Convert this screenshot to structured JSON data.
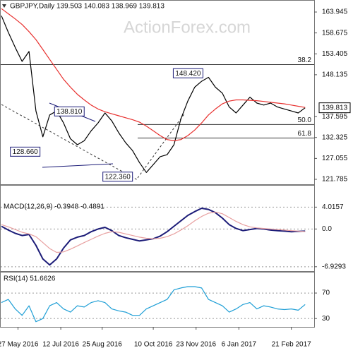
{
  "chart_data": [
    {
      "type": "line",
      "title": "GBPJPY,Daily  139.503 140.083 138.969 139.813",
      "watermark": "ActionForex.com",
      "xlim": [
        0,
        225
      ],
      "x": [
        0,
        5,
        10,
        15,
        20,
        25,
        30,
        35,
        40,
        45,
        50,
        55,
        60,
        65,
        70,
        75,
        80,
        85,
        90,
        95,
        100,
        105,
        110,
        115,
        120,
        125,
        130,
        135,
        140,
        145,
        150,
        155,
        160,
        165,
        170,
        175,
        180,
        185,
        190,
        195,
        200,
        205,
        210,
        215,
        220
      ],
      "series": [
        {
          "color": "#000000",
          "values": [
            163.0,
            158.8,
            155.0,
            151.5,
            154.0,
            139.0,
            132.5,
            138.0,
            139.0,
            136.0,
            132.0,
            130.5,
            131.5,
            134.0,
            136.0,
            138.5,
            136.5,
            133.5,
            131.0,
            129.0,
            126.0,
            123.5,
            125.5,
            127.5,
            128.0,
            130.5,
            137.0,
            141.5,
            145.0,
            146.5,
            147.5,
            145.0,
            143.5,
            140.0,
            138.5,
            140.5,
            142.5,
            141.0,
            140.5,
            141.0,
            140.0,
            139.5,
            139.0,
            138.5,
            139.8
          ]
        },
        {
          "color": "#e8312f",
          "values": [
            164.8,
            163.5,
            162.2,
            160.8,
            159.0,
            157.0,
            154.5,
            152.0,
            149.5,
            147.0,
            145.0,
            143.2,
            141.8,
            140.5,
            139.5,
            138.8,
            138.3,
            137.8,
            137.3,
            136.8,
            136.2,
            135.2,
            134.0,
            132.8,
            131.8,
            131.5,
            131.8,
            132.8,
            134.2,
            136.0,
            138.0,
            139.5,
            140.8,
            141.5,
            141.8,
            141.8,
            141.7,
            141.6,
            141.4,
            141.2,
            141.0,
            140.8,
            140.5,
            140.2,
            139.9
          ]
        }
      ],
      "ylim": [
        121.07,
        166.44
      ],
      "yticks": [
        163.945,
        158.675,
        153.405,
        148.135,
        137.595,
        132.325,
        127.055,
        121.785
      ],
      "grid": false,
      "last_price": 139.813,
      "annotations": [
        {
          "x": 148,
          "value": 148.42,
          "label": "148.420"
        },
        {
          "x": 62,
          "value": 138.81,
          "label": "138.810"
        },
        {
          "x": 30,
          "value": 128.66,
          "label": "128.660"
        },
        {
          "x": 97,
          "value": 122.36,
          "label": "122.360"
        }
      ],
      "fib_levels": [
        {
          "label": "38.2",
          "value": 150.7
        },
        {
          "label": "50.0",
          "value": 135.6
        },
        {
          "label": "61.8",
          "value": 132.2
        }
      ]
    },
    {
      "type": "line",
      "title": "MACD(12,26,9) -0.3948 -0.4891",
      "xlim": [
        0,
        225
      ],
      "x": [
        0,
        5,
        10,
        15,
        20,
        25,
        30,
        35,
        40,
        45,
        50,
        55,
        60,
        65,
        70,
        75,
        80,
        85,
        90,
        95,
        100,
        105,
        110,
        115,
        120,
        125,
        130,
        135,
        140,
        145,
        150,
        155,
        160,
        165,
        170,
        175,
        180,
        185,
        190,
        195,
        200,
        205,
        210,
        215,
        220
      ],
      "series": [
        {
          "color": "#1c1c78",
          "values": [
            0.5,
            -0.2,
            -0.8,
            -1.2,
            -1.0,
            -3.0,
            -5.5,
            -6.6,
            -5.5,
            -3.5,
            -2.0,
            -1.5,
            -1.2,
            -0.5,
            0.0,
            0.3,
            -0.3,
            -1.2,
            -1.6,
            -1.9,
            -2.2,
            -2.0,
            -1.8,
            -1.3,
            -0.5,
            0.5,
            1.5,
            2.5,
            3.2,
            3.8,
            3.6,
            3.0,
            2.0,
            0.8,
            0.1,
            -0.3,
            -0.1,
            0.1,
            0.0,
            -0.2,
            -0.3,
            -0.4,
            -0.5,
            -0.45,
            -0.39
          ]
        },
        {
          "color": "#e8a0a0",
          "values": [
            0.8,
            0.4,
            -0.1,
            -0.6,
            -0.9,
            -1.4,
            -2.5,
            -3.6,
            -4.3,
            -4.2,
            -3.7,
            -3.1,
            -2.5,
            -1.9,
            -1.3,
            -0.8,
            -0.5,
            -0.6,
            -0.9,
            -1.2,
            -1.5,
            -1.7,
            -1.8,
            -1.7,
            -1.4,
            -0.9,
            -0.2,
            0.6,
            1.5,
            2.3,
            2.9,
            3.1,
            2.8,
            2.1,
            1.4,
            0.8,
            0.4,
            0.2,
            0.1,
            0.0,
            -0.1,
            -0.2,
            -0.3,
            -0.4,
            -0.49
          ]
        }
      ],
      "ylim": [
        -7.6,
        5.1
      ],
      "yticks": [
        4.0157,
        {
          "value": 0,
          "label": "0.0"
        },
        -6.9293
      ],
      "grid": true
    },
    {
      "type": "line",
      "title": "RSI(14) 51.6626",
      "xlim": [
        0,
        225
      ],
      "x": [
        0,
        5,
        10,
        15,
        20,
        25,
        30,
        35,
        40,
        45,
        50,
        55,
        60,
        65,
        70,
        75,
        80,
        85,
        90,
        95,
        100,
        105,
        110,
        115,
        120,
        125,
        130,
        135,
        140,
        145,
        150,
        155,
        160,
        165,
        170,
        175,
        180,
        185,
        190,
        195,
        200,
        205,
        210,
        215,
        220
      ],
      "series": [
        {
          "color": "#1f9fd6",
          "values": [
            55,
            60,
            45,
            35,
            50,
            25,
            30,
            50,
            55,
            45,
            40,
            50,
            48,
            55,
            58,
            55,
            45,
            42,
            40,
            35,
            35,
            45,
            50,
            55,
            60,
            75,
            78,
            80,
            80,
            78,
            60,
            55,
            50,
            40,
            45,
            52,
            55,
            45,
            50,
            48,
            45,
            44,
            45,
            43,
            52
          ]
        }
      ],
      "ylim": [
        18,
        100
      ],
      "yticks": [
        70,
        30
      ],
      "grid": true,
      "xticks": [
        {
          "value": 12,
          "label": "27 May 2016"
        },
        {
          "value": 43,
          "label": "12 Jul 2016"
        },
        {
          "value": 73,
          "label": "25 Aug 2016"
        },
        {
          "value": 110,
          "label": "10 Oct 2016"
        },
        {
          "value": 141,
          "label": "23 Nov 2016"
        },
        {
          "value": 172,
          "label": "6 Jan 2017"
        },
        {
          "value": 210,
          "label": "21 Feb 2017"
        }
      ]
    }
  ]
}
